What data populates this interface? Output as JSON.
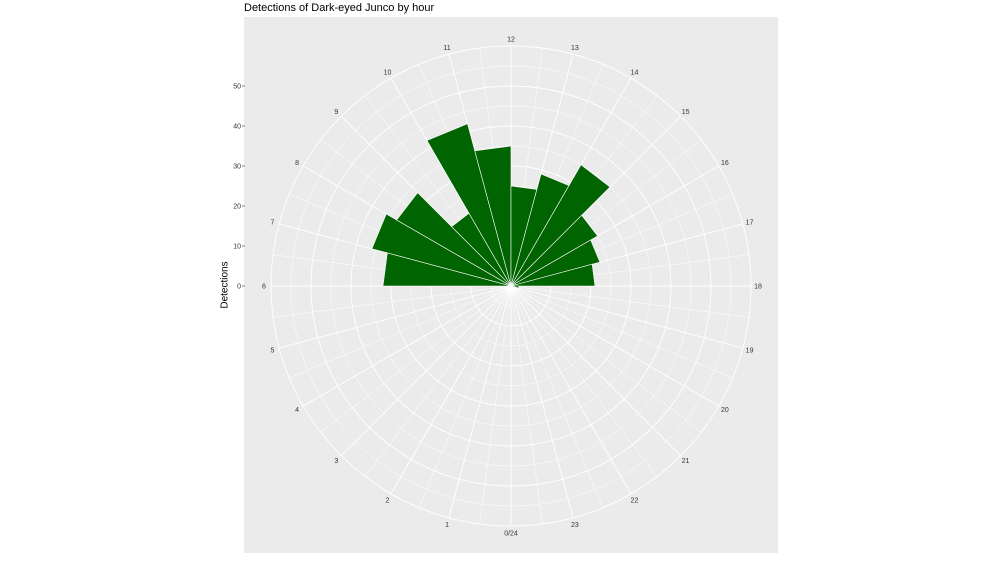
{
  "chart_data": {
    "type": "bar",
    "polar": true,
    "title": "Detections of Dark-eyed Junco by hour",
    "xlabel": "",
    "ylabel": "Detections",
    "categories": [
      "0/24",
      "1",
      "2",
      "3",
      "4",
      "5",
      "6",
      "7",
      "8",
      "9",
      "10",
      "11",
      "12",
      "13",
      "14",
      "15",
      "16",
      "17",
      "18",
      "19",
      "20",
      "21",
      "22",
      "23"
    ],
    "hours": [
      0,
      1,
      2,
      3,
      4,
      5,
      6,
      7,
      8,
      9,
      10,
      11,
      12,
      13,
      14,
      15,
      16,
      17,
      18,
      19,
      20,
      21,
      22,
      23
    ],
    "values": [
      0,
      0,
      0,
      0,
      0,
      0,
      32,
      36,
      33,
      21,
      42,
      35,
      25,
      29,
      35,
      25,
      23,
      21,
      2,
      0,
      0,
      0,
      0,
      0
    ],
    "ylim": [
      0,
      60
    ],
    "ytick_labels": [
      "0",
      "10",
      "20",
      "30",
      "40",
      "50"
    ],
    "ytick_values": [
      0,
      10,
      20,
      30,
      40,
      50
    ],
    "bar_color": "#006400",
    "panel_color": "#ebebeb",
    "grid_color": "#ffffff",
    "grid": true
  }
}
